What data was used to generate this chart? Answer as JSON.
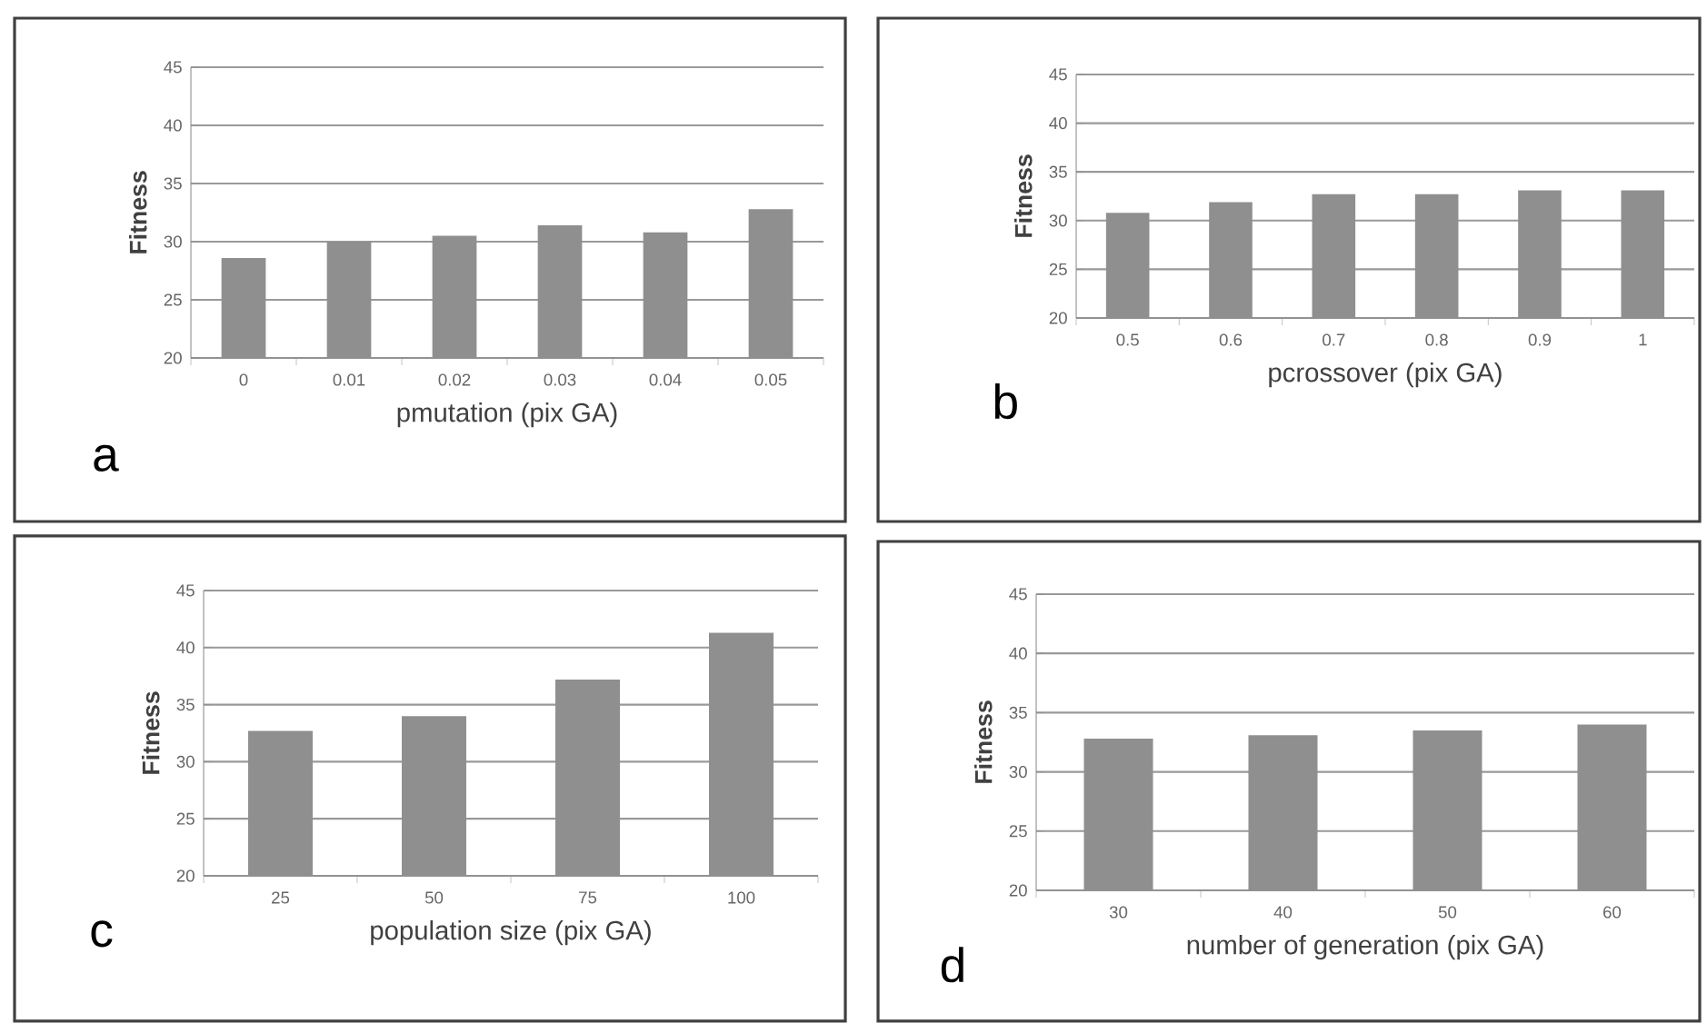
{
  "chart_data": [
    {
      "type": "bar",
      "categories": [
        "0",
        "0.01",
        "0.02",
        "0.03",
        "0.04",
        "0.05"
      ],
      "values": [
        28.6,
        30.0,
        30.5,
        31.4,
        30.8,
        32.8
      ],
      "color": "#8f8f8f",
      "xlabel": "pmutation (pix GA)",
      "ylabel": "Fitness",
      "ylim": [
        20,
        45
      ],
      "yticks": [
        20,
        25,
        30,
        35,
        40,
        45
      ],
      "grid": "y",
      "annotations": [
        "a"
      ]
    },
    {
      "type": "bar",
      "categories": [
        "0.5",
        "0.6",
        "0.7",
        "0.8",
        "0.9",
        "1"
      ],
      "values": [
        30.8,
        31.9,
        32.7,
        32.7,
        33.1,
        33.1
      ],
      "color": "#8f8f8f",
      "xlabel": "pcrossover (pix GA)",
      "ylabel": "Fitness",
      "ylim": [
        20,
        45
      ],
      "yticks": [
        20,
        25,
        30,
        35,
        40,
        45
      ],
      "grid": "y",
      "annotations": [
        "b"
      ]
    },
    {
      "type": "bar",
      "categories": [
        "25",
        "50",
        "75",
        "100"
      ],
      "values": [
        32.7,
        34.0,
        37.2,
        41.3
      ],
      "color": "#8f8f8f",
      "xlabel": "population size (pix GA)",
      "ylabel": "Fitness",
      "ylim": [
        20,
        45
      ],
      "yticks": [
        20,
        25,
        30,
        35,
        40,
        45
      ],
      "grid": "y",
      "annotations": [
        "c"
      ]
    },
    {
      "type": "bar",
      "categories": [
        "30",
        "40",
        "50",
        "60"
      ],
      "values": [
        32.8,
        33.1,
        33.5,
        34.0
      ],
      "color": "#8f8f8f",
      "xlabel": "number of generation (pix GA)",
      "ylabel": "Fitness",
      "ylim": [
        20,
        45
      ],
      "yticks": [
        20,
        25,
        30,
        35,
        40,
        45
      ],
      "grid": "y",
      "annotations": [
        "d"
      ]
    }
  ]
}
